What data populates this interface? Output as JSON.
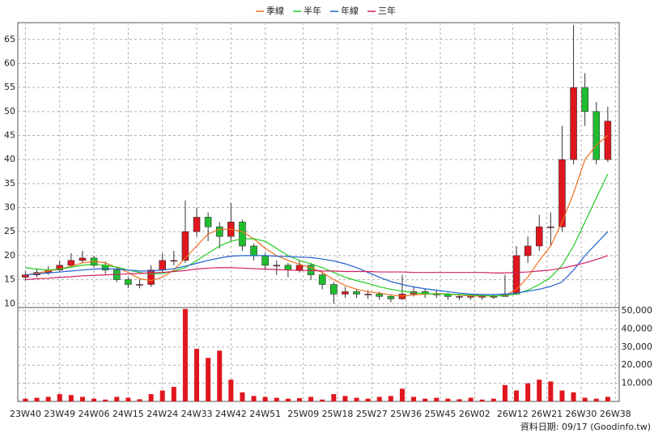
{
  "chart_data": {
    "type": "candlestick",
    "grid": true,
    "up_color": "#e0161e",
    "down_color": "#1fbd2e",
    "volume_color": "#e0161e",
    "xlim": [
      -2,
      156
    ],
    "ylim": [
      9.2,
      68.5
    ],
    "yticks": [
      10,
      15,
      20,
      25,
      30,
      35,
      40,
      45,
      50,
      55,
      60,
      65
    ],
    "y2lim": [
      0,
      51800
    ],
    "y2ticks": [
      {
        "value": 10000,
        "label": "10,000"
      },
      {
        "value": 20000,
        "label": "20,000"
      },
      {
        "value": 30000,
        "label": "30,000"
      },
      {
        "value": 40000,
        "label": "40,000"
      },
      {
        "value": 50000,
        "label": "50,000"
      }
    ],
    "xticks": [
      {
        "value": 0,
        "label": "23W40"
      },
      {
        "value": 9,
        "label": "23W49"
      },
      {
        "value": 18,
        "label": "24W06"
      },
      {
        "value": 27,
        "label": "24W15"
      },
      {
        "value": 36,
        "label": "24W24"
      },
      {
        "value": 45,
        "label": "24W33"
      },
      {
        "value": 54,
        "label": "24W42"
      },
      {
        "value": 63,
        "label": "24W51"
      },
      {
        "value": 73,
        "label": "25W09"
      },
      {
        "value": 82,
        "label": "25W18"
      },
      {
        "value": 91,
        "label": "25W27"
      },
      {
        "value": 100,
        "label": "25W36"
      },
      {
        "value": 109,
        "label": "25W45"
      },
      {
        "value": 118,
        "label": "26W02"
      },
      {
        "value": 128,
        "label": "26W12"
      },
      {
        "value": 137,
        "label": "26W21"
      },
      {
        "value": 146,
        "label": "26W30"
      },
      {
        "value": 155,
        "label": "26W38"
      }
    ],
    "x": [
      0,
      3,
      6,
      9,
      12,
      15,
      18,
      21,
      24,
      27,
      30,
      33,
      36,
      39,
      42,
      45,
      48,
      51,
      54,
      57,
      60,
      63,
      66,
      69,
      72,
      75,
      78,
      81,
      84,
      87,
      90,
      93,
      96,
      99,
      102,
      105,
      108,
      111,
      114,
      117,
      120,
      123,
      126,
      129,
      132,
      135,
      138,
      141,
      144,
      147,
      150,
      153
    ],
    "open": [
      15.5,
      16,
      16.5,
      17,
      18,
      19,
      19.5,
      18,
      17,
      15,
      14,
      14,
      17,
      19,
      19,
      25,
      28,
      26,
      24,
      27,
      22,
      20,
      18,
      18,
      17,
      18,
      16,
      14,
      12,
      12.5,
      12,
      12,
      11.5,
      11,
      12,
      12.5,
      12,
      12,
      11.5,
      11.5,
      11.5,
      11.5,
      11.5,
      12,
      20,
      22,
      26,
      26,
      40,
      55,
      50,
      40
    ],
    "high": [
      16.8,
      17.3,
      17.8,
      19,
      20.5,
      21,
      20,
      18.8,
      17.5,
      15.5,
      15,
      18,
      20.5,
      21,
      31.5,
      30,
      29,
      27,
      31,
      27.5,
      22.5,
      20.5,
      19,
      18.5,
      19,
      18.5,
      16.5,
      14.5,
      13.5,
      13,
      12.8,
      12.5,
      12,
      16,
      13.5,
      13,
      12.8,
      12.3,
      12,
      12,
      12,
      12,
      16,
      22,
      24,
      28.5,
      29,
      47,
      68,
      58,
      52,
      51
    ],
    "low": [
      14.8,
      15.5,
      16,
      16.5,
      17.5,
      18.5,
      17.5,
      16.2,
      14.5,
      13.2,
      13.2,
      13.5,
      16.5,
      18,
      18.5,
      24,
      23,
      21.5,
      23,
      21,
      19,
      17,
      16,
      15.5,
      16.5,
      15,
      13,
      10,
      11.2,
      11.2,
      11,
      10.8,
      10.3,
      10.8,
      11.5,
      11.2,
      11.2,
      10.8,
      10.8,
      10.8,
      10.8,
      11,
      11.5,
      11.8,
      18.5,
      21,
      22,
      25,
      39,
      47,
      39,
      39.5
    ],
    "close": [
      16,
      16.5,
      17,
      18,
      19,
      19.5,
      18,
      17,
      15,
      14,
      14,
      17,
      19,
      19,
      25,
      28,
      26,
      24,
      27,
      22,
      20,
      18,
      18,
      17,
      18,
      16,
      14,
      12,
      12.5,
      12,
      12,
      11.5,
      11,
      12,
      12.5,
      12,
      12,
      11.5,
      11.5,
      11.5,
      11.5,
      11.5,
      12,
      20,
      22,
      26,
      26,
      40,
      55,
      50,
      40,
      48
    ],
    "volume": [
      1500,
      2000,
      2500,
      4000,
      3500,
      2500,
      1500,
      1000,
      2500,
      2000,
      1200,
      4000,
      6000,
      8000,
      51000,
      29000,
      24000,
      28000,
      12000,
      5000,
      3000,
      2500,
      2000,
      1500,
      1800,
      2500,
      1000,
      4000,
      3000,
      2000,
      1500,
      2500,
      3000,
      7000,
      2500,
      1500,
      2000,
      1500,
      1200,
      2000,
      1000,
      1500,
      9000,
      6000,
      10000,
      12000,
      11000,
      6000,
      5000,
      2000,
      1500,
      2500
    ],
    "series": [
      {
        "name": "季線",
        "color": "#f07020",
        "values": [
          16,
          16.3,
          16.8,
          17.2,
          17.8,
          18.5,
          18.8,
          18.5,
          17.5,
          16.5,
          15.2,
          14.8,
          15.5,
          17,
          19.5,
          22,
          24.5,
          25.5,
          25.5,
          25,
          23.5,
          21.5,
          20,
          19,
          18.2,
          17.5,
          16.5,
          15,
          13.8,
          13,
          12.5,
          12.2,
          11.8,
          11.6,
          11.8,
          12,
          12.1,
          12,
          11.8,
          11.6,
          11.6,
          11.6,
          11.7,
          13,
          15.5,
          19,
          22,
          27,
          33,
          40,
          43,
          45
        ]
      },
      {
        "name": "半年",
        "color": "#22cc22",
        "values": [
          17.5,
          17.2,
          17,
          17.2,
          17.6,
          18,
          18.2,
          18,
          17.6,
          17,
          16.5,
          16.2,
          16.3,
          16.8,
          17.5,
          19,
          20.5,
          22,
          23,
          23.5,
          23.5,
          23,
          21.5,
          20,
          19,
          18.3,
          17.5,
          16.5,
          15.5,
          14.8,
          14.2,
          13.5,
          13,
          12.6,
          12.3,
          12.1,
          12,
          12,
          11.9,
          11.8,
          11.7,
          11.6,
          11.7,
          12,
          12.8,
          14,
          15.5,
          18,
          22,
          27,
          32,
          37
        ]
      },
      {
        "name": "年線",
        "color": "#2060d0",
        "values": [
          16,
          16.2,
          16.4,
          16.6,
          16.8,
          17,
          17.2,
          17.3,
          17.2,
          17,
          16.8,
          16.8,
          17,
          17.3,
          17.8,
          18.4,
          19,
          19.5,
          19.9,
          20,
          20,
          20,
          19.9,
          19.8,
          19.7,
          19.6,
          19.3,
          18.9,
          18.3,
          17.5,
          16.5,
          15.5,
          14.6,
          14,
          13.5,
          13.1,
          12.8,
          12.5,
          12.2,
          12,
          11.9,
          11.9,
          12,
          12.2,
          12.6,
          13,
          13.6,
          14.5,
          17,
          20,
          22.5,
          25
        ]
      },
      {
        "name": "三年",
        "color": "#d02060",
        "values": [
          15,
          15.2,
          15.3,
          15.5,
          15.6,
          15.8,
          15.9,
          16,
          16.1,
          16.2,
          16.3,
          16.4,
          16.5,
          16.7,
          16.9,
          17.2,
          17.4,
          17.5,
          17.5,
          17.4,
          17.3,
          17.2,
          17.1,
          17,
          16.9,
          16.9,
          16.8,
          16.8,
          16.7,
          16.7,
          16.7,
          16.6,
          16.6,
          16.6,
          16.5,
          16.5,
          16.5,
          16.5,
          16.5,
          16.5,
          16.5,
          16.4,
          16.4,
          16.5,
          16.6,
          16.8,
          17,
          17.4,
          17.9,
          18.5,
          19.2,
          20
        ]
      }
    ],
    "footnote": "資料日期: 09/17 (Goodinfo.tw)"
  }
}
